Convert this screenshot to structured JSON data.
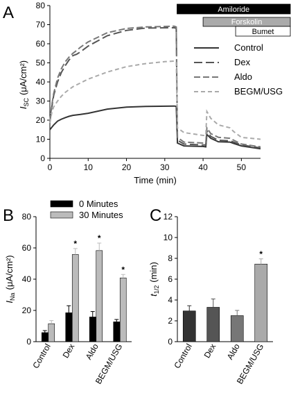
{
  "chart_data": [
    {
      "panel": "A",
      "type": "line",
      "xlabel": "Time (min)",
      "ylabel_main": "I",
      "ylabel_sub": "SC",
      "ylabel_units": "(μA/cm²)",
      "xlim": [
        0,
        55
      ],
      "ylim": [
        0,
        80
      ],
      "xticks": [
        0,
        10,
        20,
        30,
        40,
        50
      ],
      "yticks": [
        0,
        10,
        20,
        30,
        40,
        50,
        60,
        70,
        80
      ],
      "treatments": [
        {
          "label": "Amiloride",
          "start": 33.2,
          "end": 55,
          "color": "#000000",
          "text_color": "#ffffff"
        },
        {
          "label": "Forskolin",
          "start": 40,
          "end": 55,
          "color": "#aaaaaa",
          "text_color": "#ffffff"
        },
        {
          "label": "Bumet",
          "start": 48.5,
          "end": 55,
          "color": "#ffffff",
          "text_color": "#000000"
        }
      ],
      "series": [
        {
          "name": "Control",
          "color": "#333333",
          "dash": "",
          "points": [
            [
              0,
              15
            ],
            [
              1,
              17.5
            ],
            [
              2,
              19.5
            ],
            [
              3,
              20.5
            ],
            [
              4,
              21.3
            ],
            [
              5,
              22
            ],
            [
              6,
              22.5
            ],
            [
              8,
              23
            ],
            [
              10,
              23.6
            ],
            [
              15,
              25.8
            ],
            [
              20,
              26.8
            ],
            [
              25,
              27.2
            ],
            [
              32.5,
              27.4
            ],
            [
              33,
              27.2
            ],
            [
              33.3,
              8
            ],
            [
              35,
              6.5
            ],
            [
              40,
              6.2
            ],
            [
              40.7,
              6
            ],
            [
              41,
              12.5
            ],
            [
              42,
              10.5
            ],
            [
              44,
              8.7
            ],
            [
              47,
              8.5
            ],
            [
              48,
              7.8
            ],
            [
              50,
              6.5
            ],
            [
              55,
              5
            ]
          ]
        },
        {
          "name": "Dex",
          "color": "#555555",
          "dash": "12 5",
          "points": [
            [
              0,
              19
            ],
            [
              0.5,
              27
            ],
            [
              1,
              33
            ],
            [
              2,
              40
            ],
            [
              3,
              45
            ],
            [
              4,
              48.5
            ],
            [
              5,
              51.5
            ],
            [
              6,
              53.8
            ],
            [
              7,
              54.5
            ],
            [
              8,
              55.8
            ],
            [
              10,
              58.8
            ],
            [
              15,
              64.2
            ],
            [
              20,
              67
            ],
            [
              25,
              68.2
            ],
            [
              32.5,
              68.4
            ],
            [
              33,
              68
            ],
            [
              33.3,
              9.5
            ],
            [
              35,
              7.5
            ],
            [
              40,
              7
            ],
            [
              40.7,
              7
            ],
            [
              41,
              14.5
            ],
            [
              42,
              11.5
            ],
            [
              44,
              9.5
            ],
            [
              47,
              9.2
            ],
            [
              48,
              8.5
            ],
            [
              50,
              7
            ],
            [
              55,
              5.5
            ]
          ]
        },
        {
          "name": "Aldo",
          "color": "#777777",
          "dash": "9 4",
          "points": [
            [
              0,
              19
            ],
            [
              0.5,
              28
            ],
            [
              1,
              34
            ],
            [
              2,
              42
            ],
            [
              3,
              47
            ],
            [
              4,
              50.5
            ],
            [
              5,
              53
            ],
            [
              6,
              55
            ],
            [
              7,
              56.5
            ],
            [
              8,
              58.2
            ],
            [
              10,
              61
            ],
            [
              15,
              65.8
            ],
            [
              20,
              68
            ],
            [
              25,
              68.8
            ],
            [
              32.5,
              69.2
            ],
            [
              33,
              68.8
            ],
            [
              33.3,
              11
            ],
            [
              35,
              8.5
            ],
            [
              40,
              8
            ],
            [
              40.7,
              8
            ],
            [
              41,
              16
            ],
            [
              42,
              13
            ],
            [
              44,
              11
            ],
            [
              47,
              10.5
            ],
            [
              48,
              9.5
            ],
            [
              50,
              7.5
            ],
            [
              55,
              6
            ]
          ]
        },
        {
          "name": "BEGM/USG",
          "color": "#aaaaaa",
          "dash": "6 4",
          "points": [
            [
              0,
              18.5
            ],
            [
              0.5,
              24
            ],
            [
              1,
              27
            ],
            [
              2,
              30
            ],
            [
              3,
              32.5
            ],
            [
              4,
              34.5
            ],
            [
              5,
              36
            ],
            [
              6,
              37.5
            ],
            [
              7,
              38.5
            ],
            [
              8,
              39.5
            ],
            [
              10,
              41.5
            ],
            [
              15,
              45.2
            ],
            [
              20,
              48
            ],
            [
              25,
              49.6
            ],
            [
              30,
              50.6
            ],
            [
              32.5,
              50.9
            ],
            [
              33,
              50.5
            ],
            [
              33.3,
              16
            ],
            [
              35,
              13.5
            ],
            [
              40,
              12
            ],
            [
              40.7,
              12
            ],
            [
              41,
              24.5
            ],
            [
              42,
              21
            ],
            [
              44,
              17.5
            ],
            [
              47,
              16
            ],
            [
              48,
              14
            ],
            [
              50,
              11
            ],
            [
              55,
              10
            ]
          ]
        }
      ]
    },
    {
      "panel": "B",
      "type": "bar",
      "categories": [
        "Control",
        "Dex",
        "Aldo",
        "BEGM/USG"
      ],
      "ylabel_main": "I",
      "ylabel_sub": "Na",
      "ylabel_units": "(μA/cm²)",
      "ylim": [
        0,
        80
      ],
      "yticks": [
        0,
        20,
        40,
        60,
        80
      ],
      "legend_position": "top-left",
      "series": [
        {
          "name": "0 Minutes",
          "color": "#000000",
          "values": [
            5.8,
            18.5,
            15.8,
            12.7
          ],
          "errors": [
            1.3,
            4.5,
            3.5,
            1.5
          ]
        },
        {
          "name": "30 Minutes",
          "color": "#bbbbbb",
          "values": [
            11.5,
            55.8,
            58.3,
            40.8
          ],
          "errors": [
            2.0,
            3.8,
            4.8,
            2.2
          ]
        }
      ],
      "significance": [
        "",
        "*",
        "*",
        "*"
      ]
    },
    {
      "panel": "C",
      "type": "bar",
      "categories": [
        "Control",
        "Dex",
        "Aldo",
        "BEGM/USG"
      ],
      "ylabel_main": "t",
      "ylabel_sub": "1/2",
      "ylabel_units": "(min)",
      "ylim": [
        0,
        12
      ],
      "yticks": [
        0,
        2,
        4,
        6,
        8,
        10,
        12
      ],
      "values": [
        2.95,
        3.3,
        2.5,
        7.45
      ],
      "errors": [
        0.5,
        0.8,
        0.5,
        0.5
      ],
      "colors": [
        "#333333",
        "#555555",
        "#777777",
        "#aaaaaa"
      ],
      "significance": [
        "",
        "",
        "",
        "*"
      ]
    }
  ]
}
